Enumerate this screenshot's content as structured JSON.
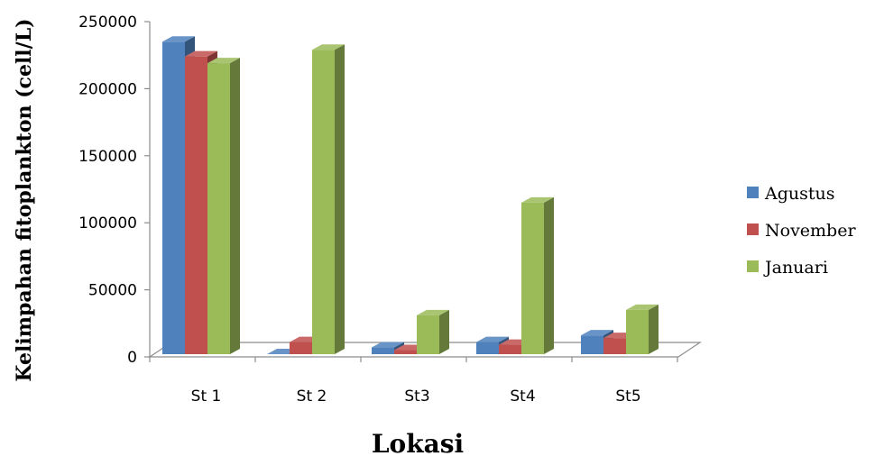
{
  "chart_data": {
    "type": "bar",
    "categories": [
      "St 1",
      "St 2",
      "St3",
      "St4",
      "St5"
    ],
    "series": [
      {
        "name": "Agustus",
        "values": [
          233000,
          0,
          5000,
          9000,
          14000
        ],
        "color": "#4F81BD"
      },
      {
        "name": "November",
        "values": [
          222000,
          9000,
          3000,
          7000,
          12000
        ],
        "color": "#C0504D"
      },
      {
        "name": "Januari",
        "values": [
          217000,
          227000,
          29000,
          113000,
          33000
        ],
        "color": "#9BBB59"
      }
    ],
    "xlabel": "Lokasi",
    "ylabel": "Kelimpahan fitoplankton (cell/L)",
    "ylim": [
      0,
      250000
    ],
    "yticks": [
      0,
      50000,
      100000,
      150000,
      200000,
      250000
    ],
    "grid": false,
    "legend": "right",
    "style": "3d-clustered"
  }
}
